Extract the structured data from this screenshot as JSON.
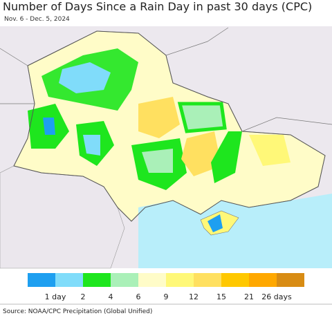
{
  "header": {
    "title": "Number of Days Since a Rain Day in past 30 days (CPC)",
    "subtitle": "Nov. 6 - Dec. 5, 2024"
  },
  "legend": {
    "colors": [
      "#1e9ff0",
      "#80dcfa",
      "#1ee61e",
      "#aaf0b8",
      "#fffcc8",
      "#fff878",
      "#ffe060",
      "#ffc800",
      "#ffa800",
      "#d88c14"
    ],
    "labels": [
      "1 day",
      "2",
      "4",
      "6",
      "9",
      "12",
      "15",
      "21",
      "26 days"
    ]
  },
  "footer": {
    "source": "Source: NOAA/CPC Precipitation (Global Unified)"
  }
}
